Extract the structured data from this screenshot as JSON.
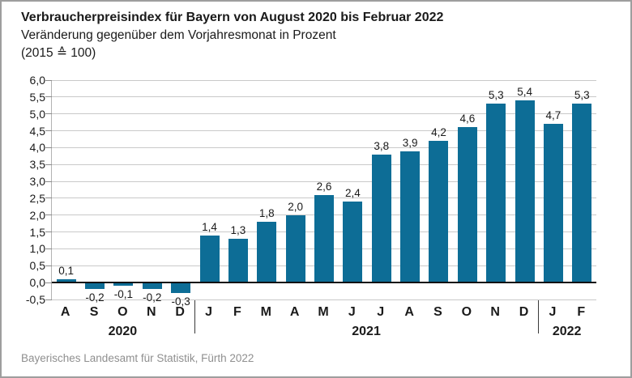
{
  "header": {
    "title": "Verbraucherpreisindex für Bayern von August 2020 bis Februar 2022",
    "subtitle": "Veränderung gegenüber dem Vorjahresmonat in Prozent",
    "base_note": "(2015 ≙ 100)"
  },
  "footer": {
    "source": "Bayerisches Landesamt für Statistik, Fürth 2022"
  },
  "colors": {
    "bar": "#0d6d96",
    "gridline": "#c9c9c9",
    "zero_line": "#111111",
    "source_text": "#8f8f8f"
  },
  "chart_data": {
    "type": "bar",
    "title": "Verbraucherpreisindex für Bayern von August 2020 bis Februar 2022",
    "subtitle": "Veränderung gegenüber dem Vorjahresmonat in Prozent (2015 ≙ 100)",
    "xlabel": "",
    "ylabel": "",
    "categories": [
      "A",
      "S",
      "O",
      "N",
      "D",
      "J",
      "F",
      "M",
      "A",
      "M",
      "J",
      "J",
      "A",
      "S",
      "O",
      "N",
      "D",
      "J",
      "F"
    ],
    "values": [
      0.1,
      -0.2,
      -0.1,
      -0.2,
      -0.3,
      1.4,
      1.3,
      1.8,
      2.0,
      2.6,
      2.4,
      3.8,
      3.9,
      4.2,
      4.6,
      5.3,
      5.4,
      4.7,
      5.3
    ],
    "value_labels": [
      "0,1",
      "-0,2",
      "-0,1",
      "-0,2",
      "-0,3",
      "1,4",
      "1,3",
      "1,8",
      "2,0",
      "2,6",
      "2,4",
      "3,8",
      "3,9",
      "4,2",
      "4,6",
      "5,3",
      "5,4",
      "4,7",
      "5,3"
    ],
    "groups": [
      {
        "label": "2020",
        "start": 0,
        "end": 4
      },
      {
        "label": "2021",
        "start": 5,
        "end": 16
      },
      {
        "label": "2022",
        "start": 17,
        "end": 18
      }
    ],
    "ylim": [
      -0.5,
      6.0
    ],
    "ytick_step": 0.5,
    "ytick_labels": [
      "6,0",
      "5,5",
      "5,0",
      "4,5",
      "4,0",
      "3,5",
      "3,0",
      "2,5",
      "2,0",
      "1,5",
      "1,0",
      "0,5",
      "0,0",
      "-0,5"
    ],
    "grid": true,
    "legend": false
  }
}
